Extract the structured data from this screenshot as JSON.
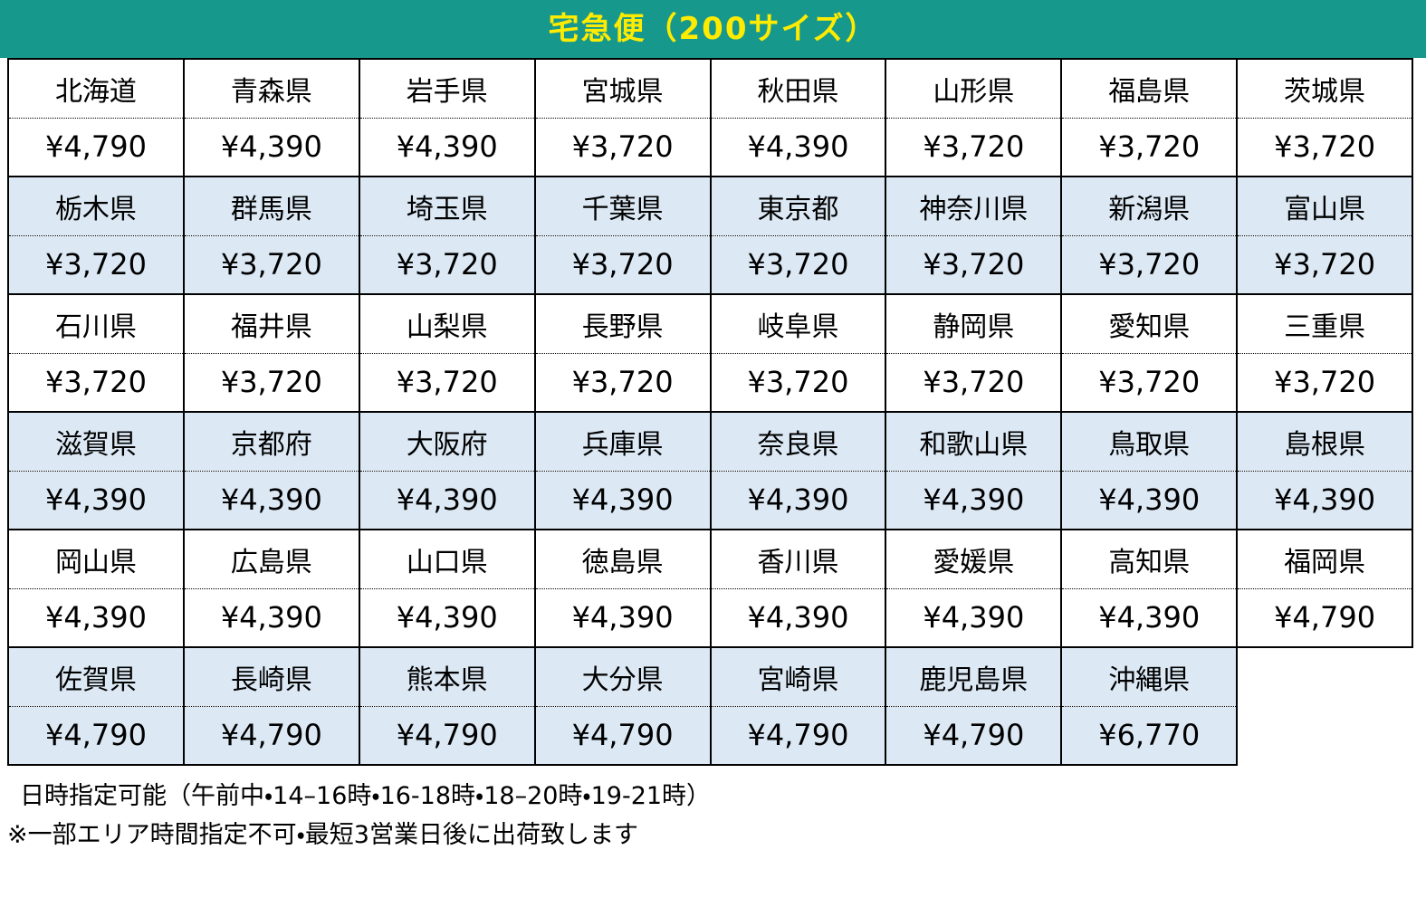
{
  "title": "宅急便（200サイズ）",
  "colors": {
    "banner_bg": "#16998C",
    "banner_text": "#FFEB00",
    "shaded_row_bg": "#DCE9F5",
    "border": "#000000"
  },
  "chart_data": {
    "type": "table",
    "title": "宅急便（200サイズ）",
    "layout": "8 columns; alternating prefecture-name row and price row; groups alternate white / light-blue shading",
    "groups": [
      {
        "shaded": false,
        "cells": [
          {
            "prefecture": "北海道",
            "price": "¥4,790"
          },
          {
            "prefecture": "青森県",
            "price": "¥4,390"
          },
          {
            "prefecture": "岩手県",
            "price": "¥4,390"
          },
          {
            "prefecture": "宮城県",
            "price": "¥3,720"
          },
          {
            "prefecture": "秋田県",
            "price": "¥4,390"
          },
          {
            "prefecture": "山形県",
            "price": "¥3,720"
          },
          {
            "prefecture": "福島県",
            "price": "¥3,720"
          },
          {
            "prefecture": "茨城県",
            "price": "¥3,720"
          }
        ]
      },
      {
        "shaded": true,
        "cells": [
          {
            "prefecture": "栃木県",
            "price": "¥3,720"
          },
          {
            "prefecture": "群馬県",
            "price": "¥3,720"
          },
          {
            "prefecture": "埼玉県",
            "price": "¥3,720"
          },
          {
            "prefecture": "千葉県",
            "price": "¥3,720"
          },
          {
            "prefecture": "東京都",
            "price": "¥3,720"
          },
          {
            "prefecture": "神奈川県",
            "price": "¥3,720"
          },
          {
            "prefecture": "新潟県",
            "price": "¥3,720"
          },
          {
            "prefecture": "富山県",
            "price": "¥3,720"
          }
        ]
      },
      {
        "shaded": false,
        "cells": [
          {
            "prefecture": "石川県",
            "price": "¥3,720"
          },
          {
            "prefecture": "福井県",
            "price": "¥3,720"
          },
          {
            "prefecture": "山梨県",
            "price": "¥3,720"
          },
          {
            "prefecture": "長野県",
            "price": "¥3,720"
          },
          {
            "prefecture": "岐阜県",
            "price": "¥3,720"
          },
          {
            "prefecture": "静岡県",
            "price": "¥3,720"
          },
          {
            "prefecture": "愛知県",
            "price": "¥3,720"
          },
          {
            "prefecture": "三重県",
            "price": "¥3,720"
          }
        ]
      },
      {
        "shaded": true,
        "cells": [
          {
            "prefecture": "滋賀県",
            "price": "¥4,390"
          },
          {
            "prefecture": "京都府",
            "price": "¥4,390"
          },
          {
            "prefecture": "大阪府",
            "price": "¥4,390"
          },
          {
            "prefecture": "兵庫県",
            "price": "¥4,390"
          },
          {
            "prefecture": "奈良県",
            "price": "¥4,390"
          },
          {
            "prefecture": "和歌山県",
            "price": "¥4,390"
          },
          {
            "prefecture": "鳥取県",
            "price": "¥4,390"
          },
          {
            "prefecture": "島根県",
            "price": "¥4,390"
          }
        ]
      },
      {
        "shaded": false,
        "cells": [
          {
            "prefecture": "岡山県",
            "price": "¥4,390"
          },
          {
            "prefecture": "広島県",
            "price": "¥4,390"
          },
          {
            "prefecture": "山口県",
            "price": "¥4,390"
          },
          {
            "prefecture": "徳島県",
            "price": "¥4,390"
          },
          {
            "prefecture": "香川県",
            "price": "¥4,390"
          },
          {
            "prefecture": "愛媛県",
            "price": "¥4,390"
          },
          {
            "prefecture": "高知県",
            "price": "¥4,390"
          },
          {
            "prefecture": "福岡県",
            "price": "¥4,790"
          }
        ]
      },
      {
        "shaded": true,
        "cells": [
          {
            "prefecture": "佐賀県",
            "price": "¥4,790"
          },
          {
            "prefecture": "長崎県",
            "price": "¥4,790"
          },
          {
            "prefecture": "熊本県",
            "price": "¥4,790"
          },
          {
            "prefecture": "大分県",
            "price": "¥4,790"
          },
          {
            "prefecture": "宮崎県",
            "price": "¥4,790"
          },
          {
            "prefecture": "鹿児島県",
            "price": "¥4,790"
          },
          {
            "prefecture": "沖縄県",
            "price": "¥6,770"
          }
        ]
      }
    ]
  },
  "footer": {
    "line1": "日時指定可能（午前中・14–16時・16-18時・18–20時・19-21時）",
    "line2": "※一部エリア時間指定不可・最短3営業日後に出荷致します"
  }
}
